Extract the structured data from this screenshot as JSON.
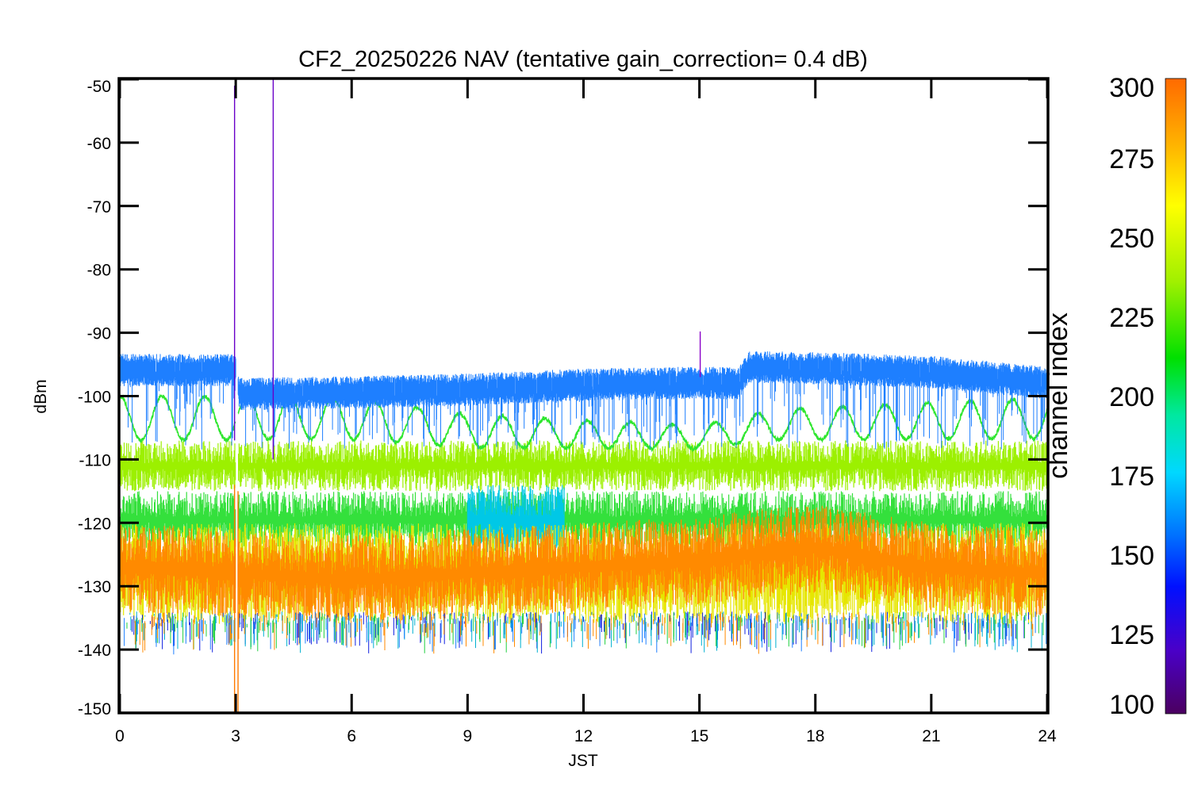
{
  "chart_data": {
    "type": "line",
    "title": "CF2_20250226 NAV (tentative gain_correction=  0.4 dB)",
    "xlabel": "JST",
    "ylabel": "dBm",
    "xlim": [
      0,
      24
    ],
    "ylim": [
      -150,
      -50
    ],
    "xticks": [
      0,
      3,
      6,
      9,
      12,
      15,
      18,
      21,
      24
    ],
    "yticks": [
      -50,
      -60,
      -70,
      -80,
      -90,
      -100,
      -110,
      -120,
      -130,
      -140,
      -150
    ],
    "grid": false,
    "colorbar": {
      "label": "channel index",
      "range": [
        100,
        300
      ],
      "ticks": [
        300,
        275,
        250,
        225,
        200,
        175,
        150,
        125,
        100
      ]
    },
    "series": [
      {
        "channel": 150,
        "color": "#1e7fff",
        "level": [
          [
            0,
            -96.5
          ],
          [
            3,
            -96.5
          ],
          [
            3.1,
            -100.3
          ],
          [
            6,
            -100
          ],
          [
            9,
            -99.6
          ],
          [
            12,
            -98.8
          ],
          [
            15,
            -98.5
          ],
          [
            16,
            -98.6
          ],
          [
            16.3,
            -96
          ],
          [
            18,
            -96.2
          ],
          [
            21,
            -96.8
          ],
          [
            24,
            -98.5
          ]
        ],
        "noise": 1.5,
        "dips_to": -107
      },
      {
        "channel": 225,
        "color": "#2ee62e",
        "oscillation": {
          "mean": [
            [
              0,
              -103.5
            ],
            [
              6,
              -103.5
            ],
            [
              9,
              -105.5
            ],
            [
              12,
              -106
            ],
            [
              15,
              -106.5
            ],
            [
              17,
              -104.5
            ],
            [
              24,
              -103.5
            ]
          ],
          "amplitude": [
            [
              0,
              3.5
            ],
            [
              6,
              3.3
            ],
            [
              9,
              2.6
            ],
            [
              12,
              2.2
            ],
            [
              15,
              1.8
            ],
            [
              17,
              2.4
            ],
            [
              24,
              3.2
            ]
          ],
          "period_hours": 1.1
        }
      },
      {
        "channel": 255,
        "color": "#9cf000",
        "band": [
          -115,
          -107
        ]
      },
      {
        "channel": 240,
        "color": "#34e03c",
        "band": [
          -124,
          -115
        ]
      },
      {
        "channel": 185,
        "color": "#00c8e6",
        "band": [
          -125,
          -114
        ],
        "x_range": [
          9,
          11.5
        ]
      },
      {
        "channel": 270,
        "color": "#e6e600",
        "band": [
          -136,
          -120
        ]
      },
      {
        "channel": 290,
        "color": "#ff8a00",
        "band": [
          -134,
          -120
        ],
        "center": [
          [
            0,
            -127
          ],
          [
            3,
            -128
          ],
          [
            6,
            -129
          ],
          [
            12,
            -127
          ],
          [
            15,
            -126
          ],
          [
            16.3,
            -125
          ],
          [
            18,
            -124
          ],
          [
            21,
            -127
          ],
          [
            24,
            -128
          ]
        ]
      }
    ],
    "spikes": [
      {
        "x": 2.97,
        "y_top": -51,
        "y_bottom": -107,
        "color": "#6a00c8"
      },
      {
        "x": 3.97,
        "y_top": -50,
        "y_bottom": -110,
        "color": "#6a00c8"
      },
      {
        "x": 15.02,
        "y_top": -89.8,
        "y_bottom": -97,
        "color": "#8a00c8"
      },
      {
        "x": 2.97,
        "y_top": -114,
        "y_bottom": -150,
        "color": "#ff7a00"
      },
      {
        "x": 3.06,
        "y_top": -115,
        "y_bottom": -150,
        "color": "#ff7a00"
      }
    ],
    "gap": [
      3.0,
      3.06
    ]
  }
}
